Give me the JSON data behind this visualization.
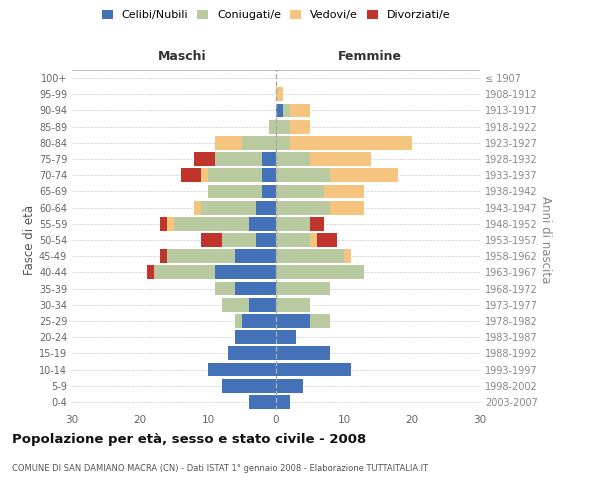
{
  "age_groups": [
    "0-4",
    "5-9",
    "10-14",
    "15-19",
    "20-24",
    "25-29",
    "30-34",
    "35-39",
    "40-44",
    "45-49",
    "50-54",
    "55-59",
    "60-64",
    "65-69",
    "70-74",
    "75-79",
    "80-84",
    "85-89",
    "90-94",
    "95-99",
    "100+"
  ],
  "birth_years": [
    "2003-2007",
    "1998-2002",
    "1993-1997",
    "1988-1992",
    "1983-1987",
    "1978-1982",
    "1973-1977",
    "1968-1972",
    "1963-1967",
    "1958-1962",
    "1953-1957",
    "1948-1952",
    "1943-1947",
    "1938-1942",
    "1933-1937",
    "1928-1932",
    "1923-1927",
    "1918-1922",
    "1913-1917",
    "1908-1912",
    "≤ 1907"
  ],
  "male": {
    "celibi": [
      4,
      8,
      10,
      7,
      6,
      5,
      4,
      6,
      9,
      6,
      3,
      4,
      3,
      2,
      2,
      2,
      0,
      0,
      0,
      0,
      0
    ],
    "coniugati": [
      0,
      0,
      0,
      0,
      0,
      1,
      4,
      3,
      9,
      10,
      5,
      11,
      8,
      8,
      8,
      7,
      5,
      1,
      0,
      0,
      0
    ],
    "vedovi": [
      0,
      0,
      0,
      0,
      0,
      0,
      0,
      0,
      0,
      0,
      0,
      1,
      1,
      0,
      1,
      0,
      4,
      0,
      0,
      0,
      0
    ],
    "divorziati": [
      0,
      0,
      0,
      0,
      0,
      0,
      0,
      0,
      1,
      1,
      3,
      1,
      0,
      0,
      3,
      3,
      0,
      0,
      0,
      0,
      0
    ]
  },
  "female": {
    "nubili": [
      2,
      4,
      11,
      8,
      3,
      5,
      0,
      0,
      0,
      0,
      0,
      0,
      0,
      0,
      0,
      0,
      0,
      0,
      1,
      0,
      0
    ],
    "coniugate": [
      0,
      0,
      0,
      0,
      0,
      3,
      5,
      8,
      13,
      10,
      5,
      5,
      8,
      7,
      8,
      5,
      2,
      2,
      1,
      0,
      0
    ],
    "vedove": [
      0,
      0,
      0,
      0,
      0,
      0,
      0,
      0,
      0,
      1,
      1,
      0,
      5,
      6,
      10,
      9,
      18,
      3,
      3,
      1,
      0
    ],
    "divorziate": [
      0,
      0,
      0,
      0,
      0,
      0,
      0,
      0,
      0,
      0,
      3,
      2,
      0,
      0,
      0,
      0,
      0,
      0,
      0,
      0,
      0
    ]
  },
  "color_celibi": "#4472b8",
  "color_coniugati": "#b9c9a0",
  "color_vedovi": "#f5c47f",
  "color_divorziati": "#c0342c",
  "background_color": "#ffffff",
  "grid_color": "#cccccc",
  "bar_height": 0.85,
  "xlim": 30,
  "title": "Popolazione per età, sesso e stato civile - 2008",
  "subtitle": "COMUNE DI SAN DAMIANO MACRA (CN) - Dati ISTAT 1° gennaio 2008 - Elaborazione TUTTAITALIA.IT",
  "ylabel_left": "Fasce di età",
  "ylabel_right": "Anni di nascita",
  "label_maschi": "Maschi",
  "label_femmine": "Femmine",
  "legend_labels": [
    "Celibi/Nubili",
    "Coniugati/e",
    "Vedovi/e",
    "Divorziati/e"
  ]
}
